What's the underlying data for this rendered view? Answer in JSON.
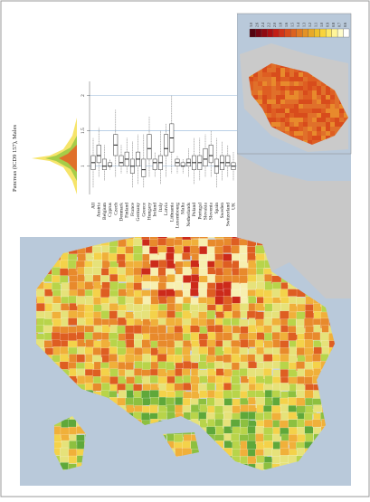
{
  "chart_data": {
    "type": "boxplot",
    "title": "Pancreas (ICD9 157), Males",
    "categories": [
      "All",
      "Austria",
      "Belgium",
      "Cyprus",
      "Czech",
      "Denmark",
      "Finland",
      "France",
      "Germany",
      "Greece",
      "Hungary",
      "Ireland",
      "Italy",
      "Latvia",
      "Lithuania",
      "Luxembourg",
      "Malta",
      "Netherlands",
      "Poland",
      "Portugal",
      "Slovakia",
      "Slovenia",
      "Spain",
      "Sweden",
      "Switzerland",
      "UK"
    ],
    "low": [
      0.7,
      0.85,
      0.8,
      0.95,
      0.85,
      0.9,
      0.9,
      0.7,
      0.75,
      0.7,
      0.85,
      0.85,
      0.75,
      0.85,
      0.9,
      0.9,
      0.9,
      0.85,
      0.75,
      0.8,
      0.85,
      0.85,
      0.7,
      0.8,
      0.85,
      0.8
    ],
    "q1": [
      0.95,
      1.05,
      0.95,
      1.0,
      1.15,
      1.0,
      1.0,
      0.9,
      1.0,
      0.85,
      1.1,
      0.95,
      0.95,
      1.15,
      1.2,
      1.0,
      1.0,
      1.0,
      0.95,
      0.95,
      1.0,
      1.05,
      0.9,
      0.95,
      1.0,
      0.95
    ],
    "median": [
      1.05,
      1.15,
      1.0,
      1.0,
      1.3,
      1.05,
      1.1,
      1.0,
      1.1,
      0.95,
      1.25,
      1.05,
      1.05,
      1.25,
      1.4,
      1.05,
      1.0,
      1.05,
      1.05,
      1.05,
      1.1,
      1.15,
      1.0,
      1.05,
      1.05,
      1.0
    ],
    "q3": [
      1.15,
      1.3,
      1.1,
      1.05,
      1.45,
      1.15,
      1.2,
      1.1,
      1.2,
      1.1,
      1.45,
      1.1,
      1.15,
      1.45,
      1.6,
      1.1,
      1.05,
      1.1,
      1.15,
      1.15,
      1.25,
      1.3,
      1.1,
      1.15,
      1.15,
      1.05
    ],
    "high": [
      1.4,
      1.55,
      1.3,
      1.1,
      1.8,
      1.3,
      1.4,
      1.35,
      1.45,
      1.45,
      1.7,
      1.2,
      1.5,
      1.6,
      2.0,
      1.15,
      1.1,
      1.25,
      1.4,
      1.4,
      1.45,
      1.5,
      1.4,
      1.35,
      1.3,
      1.2
    ],
    "ylim": [
      0.6,
      2.2
    ],
    "yticks": [
      1,
      1.5,
      2
    ],
    "reference_lines": [
      1,
      1.5,
      2
    ],
    "legend_labels": [
      "0.6",
      "0.7",
      "0.8",
      "0.9",
      "1.0",
      "1.1",
      "1.2",
      "1.3",
      "1.4",
      "1.5",
      "1.6",
      "1.8",
      "2.0",
      "2.2",
      "2.4",
      "2.6",
      "3.0"
    ],
    "legend_colors": [
      "#ffffff",
      "#fffccc",
      "#fff59a",
      "#fde866",
      "#f9d43c",
      "#eec02c",
      "#e7a929",
      "#e39226",
      "#e07a22",
      "#dc621f",
      "#d84c1c",
      "#d03419",
      "#c21e16",
      "#aa1013",
      "#8f0a12",
      "#730512",
      "#55030f"
    ]
  }
}
